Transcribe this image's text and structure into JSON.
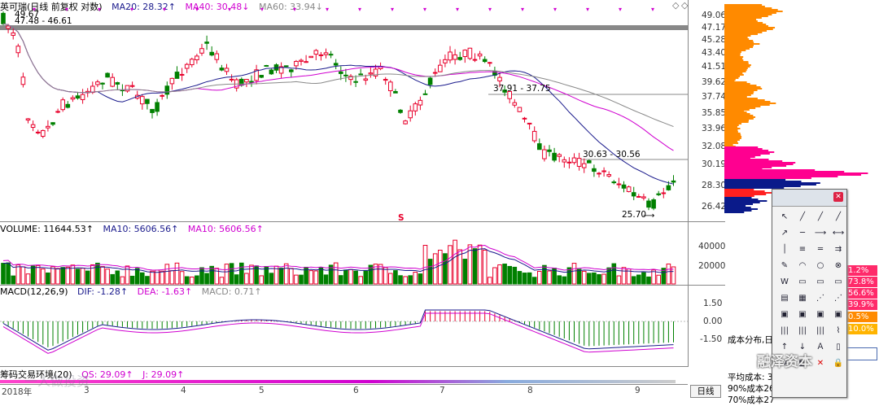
{
  "header": {
    "title": "英可瑞(日线 前复权 对数)",
    "ma20": "MA20: 28.32↑",
    "ma40": "MA40: 30.48↓",
    "ma60": "MA60: 33.94↓"
  },
  "price_axis": [
    "49.06",
    "47.17",
    "45.28",
    "43.40",
    "41.51",
    "39.62",
    "37.74",
    "35.85",
    "33.96",
    "32.08",
    "30.19",
    "28.30",
    "26.42"
  ],
  "annotations": {
    "high": "49.67",
    "level1": "47.48 - 46.61",
    "level2": "37.91 - 37.75",
    "level3": "30.63 - 30.56",
    "low": "25.70",
    "s_marker": "S"
  },
  "volume_header": {
    "label": "VOLUME: 11644.53↑",
    "ma10a": "MA10: 5606.56↑",
    "ma10b": "MA10: 5606.56↑"
  },
  "volume_axis": [
    "40000",
    "20000"
  ],
  "macd_header": {
    "label": "MACD(12,26,9)",
    "dif": "DIF: -1.28↑",
    "dea": "DEA: -1.63↑",
    "macd": "MACD: 0.71↑"
  },
  "macd_axis": [
    "1.50",
    "0.00",
    "-1.50"
  ],
  "env_header": {
    "label": "筹码交易环境(20)",
    "qs": "QS: 29.09↑",
    "j": "J: 29.09↑"
  },
  "x_axis": [
    "2018年",
    "3",
    "4",
    "5",
    "6",
    "7",
    "8",
    "9"
  ],
  "period_button": "日线",
  "cost_panel": {
    "title": "成本分布,日",
    "avg": "平均成本: 3",
    "cost90": "90%成本26.",
    "cost70": "70%成本27"
  },
  "percent_labels": [
    "1.2%",
    "73.8%",
    "56.6%",
    "39.9%",
    "0.5%",
    "10.0%"
  ],
  "watermark": "融泽资本",
  "bottom_watermark": "一人做投资",
  "colors": {
    "up": "#e8002b",
    "down": "#008000",
    "ma20": "#1a1a8c",
    "ma40": "#d000d0",
    "ma60": "#888888",
    "chip_orange": "#ff8a00",
    "chip_magenta": "#ff0090",
    "chip_blue": "#0a1a8a"
  }
}
